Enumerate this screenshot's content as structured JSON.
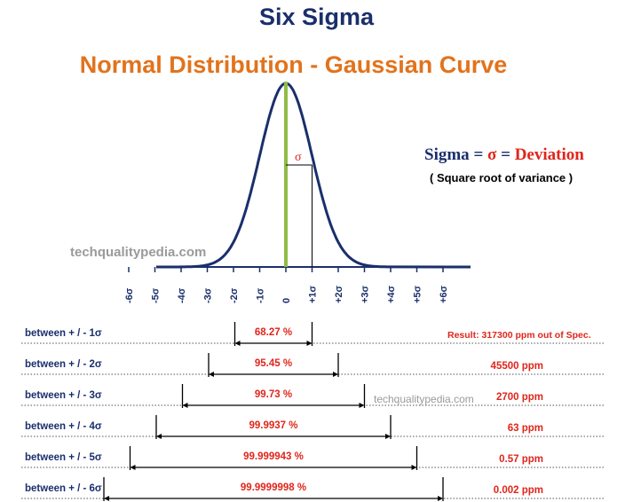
{
  "title": "Six Sigma",
  "subtitle": "Normal Distribution - Gaussian Curve",
  "legend": {
    "sigma_word": "Sigma",
    "equals1": " = ",
    "sigma_symbol": "σ",
    "equals2": " = ",
    "deviation": "Deviation",
    "note": "( Square root of variance )"
  },
  "curve_sigma_label": "σ",
  "watermark": "techqualitypedia.com",
  "axis_ticks": [
    "-6σ",
    "-5σ",
    "-4σ",
    "-3σ",
    "-2σ",
    "-1σ",
    "0",
    "+1σ",
    "+2σ",
    "+3σ",
    "+4σ",
    "+5σ",
    "+6σ"
  ],
  "rows": [
    {
      "label": "between + / - 1σ",
      "sigma": 1,
      "percent": "68.27 %",
      "ppm": "Result:  317300  ppm out of Spec."
    },
    {
      "label": "between  + / - 2σ",
      "sigma": 2,
      "percent": "95.45 %",
      "ppm": "45500  ppm"
    },
    {
      "label": "between  + / - 3σ",
      "sigma": 3,
      "percent": "99.73 %",
      "ppm": "2700  ppm"
    },
    {
      "label": "between  + / - 4σ",
      "sigma": 4,
      "percent": "99.9937 %",
      "ppm": "63  ppm"
    },
    {
      "label": "between  + / - 5σ",
      "sigma": 5,
      "percent": "99.999943 %",
      "ppm": "0.57  ppm"
    },
    {
      "label": "between  + / - 6σ",
      "sigma": 6,
      "percent": "99.9999998 %",
      "ppm": "0.002  ppm"
    }
  ],
  "colors": {
    "title": "#1a2f6b",
    "subtitle": "#e2731c",
    "curve": "#1a2f6b",
    "mean_line": "#8fbc45",
    "accent_red": "#e0251b"
  }
}
